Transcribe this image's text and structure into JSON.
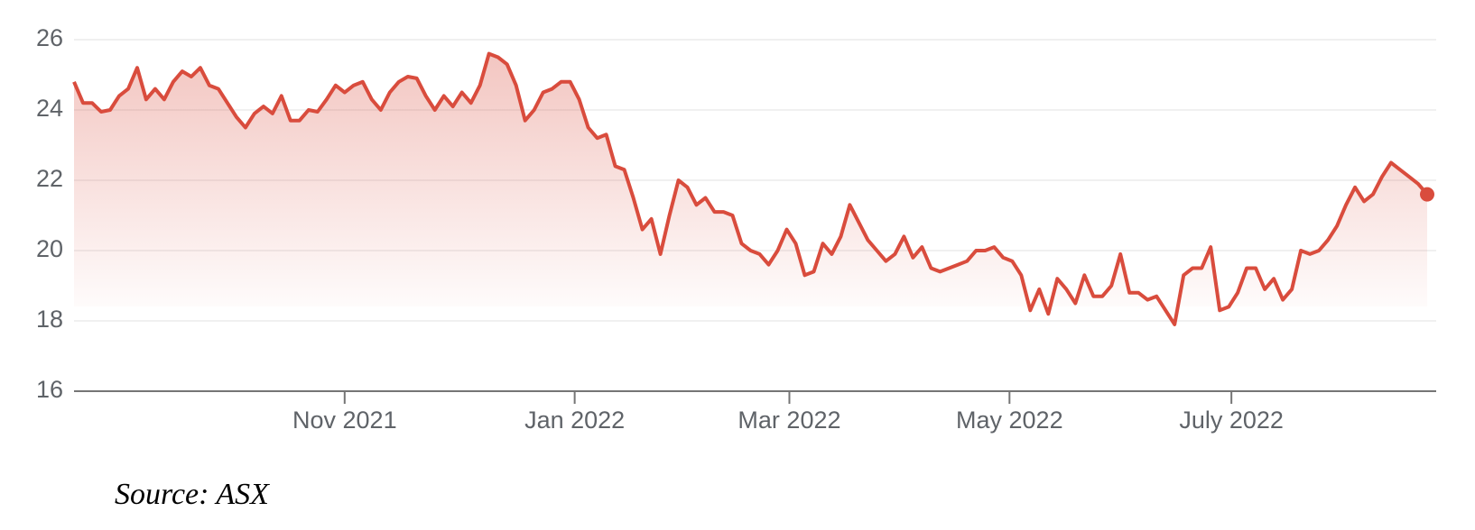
{
  "chart_data": {
    "type": "line",
    "values": [
      24.8,
      24.2,
      24.2,
      23.95,
      24.0,
      24.4,
      24.6,
      25.2,
      24.3,
      24.6,
      24.3,
      24.8,
      25.1,
      24.95,
      25.2,
      24.7,
      24.6,
      24.2,
      23.8,
      23.5,
      23.9,
      24.1,
      23.9,
      24.4,
      23.7,
      23.7,
      24.0,
      23.95,
      24.3,
      24.7,
      24.5,
      24.7,
      24.8,
      24.3,
      24.0,
      24.5,
      24.8,
      24.95,
      24.9,
      24.4,
      24.0,
      24.4,
      24.1,
      24.5,
      24.2,
      24.7,
      25.6,
      25.5,
      25.3,
      24.7,
      23.7,
      24.0,
      24.5,
      24.6,
      24.8,
      24.8,
      24.3,
      23.5,
      23.2,
      23.3,
      22.4,
      22.3,
      21.5,
      20.6,
      20.9,
      19.9,
      21.0,
      22.0,
      21.8,
      21.3,
      21.5,
      21.1,
      21.1,
      21.0,
      20.2,
      20.0,
      19.9,
      19.6,
      20.0,
      20.6,
      20.2,
      19.3,
      19.4,
      20.2,
      19.9,
      20.4,
      21.3,
      20.8,
      20.3,
      20.0,
      19.7,
      19.9,
      20.4,
      19.8,
      20.1,
      19.5,
      19.4,
      19.5,
      19.6,
      19.7,
      20.0,
      20.0,
      20.1,
      19.8,
      19.7,
      19.3,
      18.3,
      18.9,
      18.2,
      19.2,
      18.9,
      18.5,
      19.3,
      18.7,
      18.7,
      19.0,
      19.9,
      18.8,
      18.8,
      18.6,
      18.7,
      18.3,
      17.9,
      19.3,
      19.5,
      19.5,
      20.1,
      18.3,
      18.4,
      18.8,
      19.5,
      19.5,
      18.9,
      19.2,
      18.6,
      18.9,
      20.0,
      19.9,
      20.0,
      20.3,
      20.7,
      21.3,
      21.8,
      21.4,
      21.6,
      22.1,
      22.5,
      22.3,
      22.1,
      21.9,
      21.6
    ],
    "color": "#d94c3d",
    "xlim": [
      0,
      151
    ],
    "xticks": [
      {
        "value": 30,
        "label": "Nov 2021"
      },
      {
        "value": 55.5,
        "label": "Jan 2022"
      },
      {
        "value": 79.3,
        "label": "Mar 2022"
      },
      {
        "value": 103.7,
        "label": "May 2022"
      },
      {
        "value": 128.3,
        "label": "July 2022"
      }
    ],
    "ylim": [
      16,
      26
    ],
    "yticks": [
      16,
      18,
      20,
      22,
      24,
      26
    ],
    "grid": true,
    "source": "Source: ASX"
  }
}
